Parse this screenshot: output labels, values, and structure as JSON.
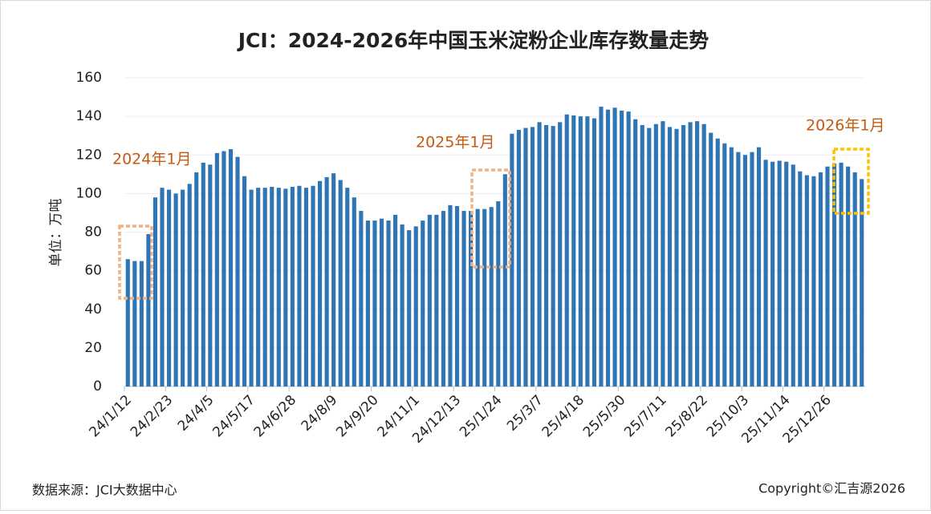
{
  "chart_data": {
    "type": "bar",
    "title": "JCI：2024-2026年中国玉米淀粉企业库存数量走势",
    "y_label": "单位：万吨",
    "source": "数据来源：JCI大数据中心",
    "copyright": "Copyright©汇吉源2026",
    "annotations": [
      "2024年1月",
      "2025年1月",
      "2026年1月"
    ],
    "color": "#2e75b6",
    "ylim": [
      0,
      160
    ],
    "yticks": [
      0,
      20,
      40,
      60,
      80,
      100,
      120,
      140,
      160
    ],
    "grid": true,
    "categories": [
      "24/1/12",
      null,
      null,
      null,
      null,
      null,
      "24/2/23",
      null,
      null,
      null,
      null,
      null,
      "24/4/5",
      null,
      null,
      null,
      null,
      null,
      "24/5/17",
      null,
      null,
      null,
      null,
      null,
      "24/6/28",
      null,
      null,
      null,
      null,
      null,
      "24/8/9",
      null,
      null,
      null,
      null,
      null,
      "24/9/20",
      null,
      null,
      null,
      null,
      null,
      "24/11/1",
      null,
      null,
      null,
      null,
      null,
      "24/12/13",
      null,
      null,
      null,
      null,
      null,
      "25/1/24",
      null,
      null,
      null,
      null,
      null,
      "25/3/7",
      null,
      null,
      null,
      null,
      null,
      "25/4/18",
      null,
      null,
      null,
      null,
      null,
      "25/5/30",
      null,
      null,
      null,
      null,
      null,
      "25/7/11",
      null,
      null,
      null,
      null,
      null,
      "25/8/22",
      null,
      null,
      null,
      null,
      null,
      "25/10/3",
      null,
      null,
      null,
      null,
      null,
      "25/11/14",
      null,
      null,
      null,
      null,
      null,
      "25/12/26",
      null,
      null,
      null,
      null,
      null
    ],
    "values": [
      66,
      65,
      65,
      79,
      98,
      103,
      102,
      100,
      102,
      105,
      111,
      116,
      115,
      121,
      122,
      123,
      119,
      109,
      102,
      103,
      103,
      103.5,
      103,
      102.5,
      103.5,
      104,
      103,
      104,
      106.5,
      108.5,
      110.5,
      107,
      103,
      98,
      91,
      86,
      86,
      87,
      86,
      89,
      84,
      81,
      83,
      86,
      89,
      89,
      91,
      94,
      93.5,
      91,
      91,
      92,
      92,
      93,
      96,
      110,
      131,
      133,
      134,
      134.5,
      137,
      135.5,
      135,
      137,
      141,
      140.5,
      140,
      140,
      139,
      145,
      143.5,
      144.5,
      143,
      142.5,
      138.5,
      135.5,
      134,
      136,
      137.5,
      134.5,
      133.5,
      135.5,
      137,
      137.5,
      136,
      131.5,
      128.5,
      126,
      124,
      121.5,
      120,
      121.5,
      124,
      117.5,
      116.5,
      117,
      116.5,
      115,
      111.5,
      109.5,
      109,
      111,
      114,
      115.5,
      116,
      114,
      111,
      107.5
    ]
  }
}
